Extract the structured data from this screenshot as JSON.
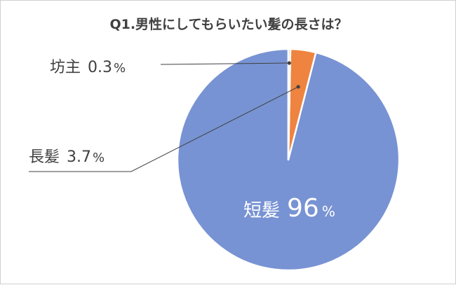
{
  "chart_data": {
    "type": "pie",
    "title": "Q1.男性にしてもらいたい髪の長さは？",
    "slices": [
      {
        "label": "短髪",
        "value": 96,
        "value_text": "96",
        "unit": "%",
        "color": "#7893d3"
      },
      {
        "label": "長髪",
        "value": 3.7,
        "value_text": "3.7",
        "unit": "%",
        "color": "#ee843f"
      },
      {
        "label": "坊主",
        "value": 0.3,
        "value_text": "0.3",
        "unit": "%",
        "color": "#b3b3b3"
      }
    ],
    "start_angle": "12 o'clock",
    "direction": "counterclockwise",
    "legend": "none"
  }
}
